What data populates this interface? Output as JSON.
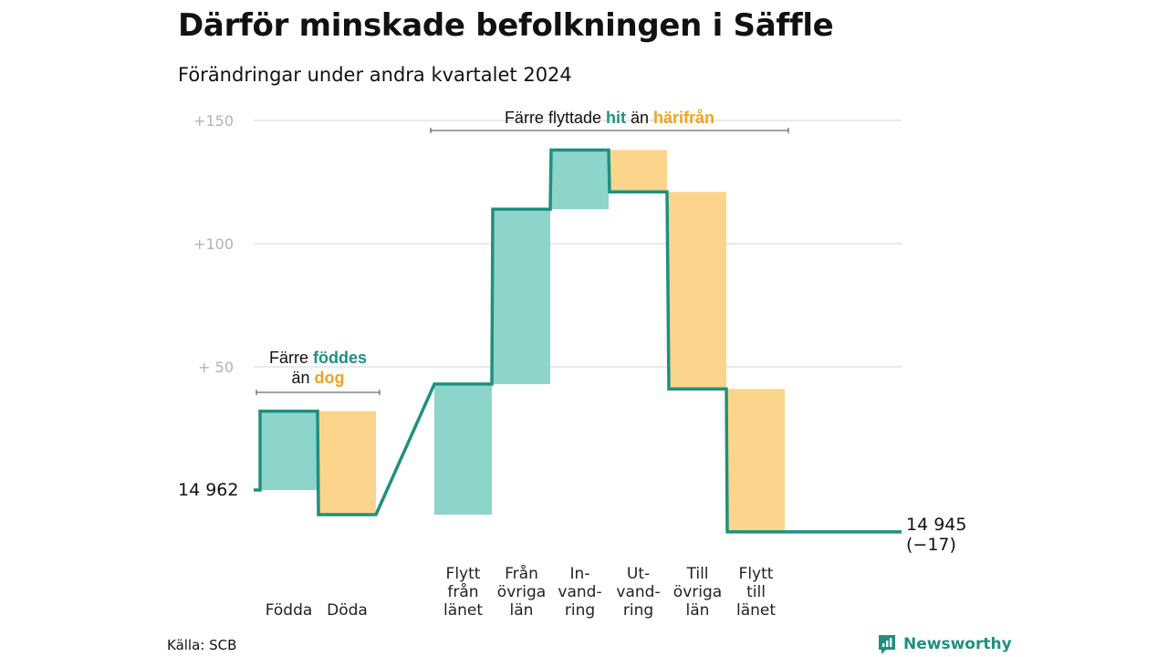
{
  "title": "Därför minskade befolkningen i Säffle",
  "subtitle": "Förändringar under andra kvartalet 2024",
  "source": "Källa: SCB",
  "logo_text": "Newsworthy",
  "colors": {
    "increase": "#8dd4ca",
    "decrease": "#fbd58c",
    "line": "#1f9080",
    "teal_text": "#1f9080",
    "orange_text": "#f0a31e"
  },
  "chart_data": {
    "type": "waterfall",
    "start": {
      "label": "14  962",
      "value": 14962
    },
    "end": {
      "label": "14 945",
      "change_label": "(−17)",
      "value": 14945
    },
    "y_ticks": [
      {
        "label": "+150",
        "value": 150
      },
      {
        "label": "+100",
        "value": 100
      },
      {
        "label": "+  50",
        "value": 50
      }
    ],
    "ylim": [
      -20,
      150
    ],
    "grid": true,
    "steps": [
      {
        "label": [
          "Födda"
        ],
        "delta": 32
      },
      {
        "label": [
          "Döda"
        ],
        "delta": -42
      },
      {
        "label": [
          "Flytt",
          "från",
          "länet"
        ],
        "delta": 53
      },
      {
        "label": [
          "Från",
          "övriga",
          "län"
        ],
        "delta": 71
      },
      {
        "label": [
          "In-",
          "vand-",
          "ring"
        ],
        "delta": 24
      },
      {
        "label": [
          "Ut-",
          "vand-",
          "ring"
        ],
        "delta": -17
      },
      {
        "label": [
          "Till",
          "övriga",
          "län"
        ],
        "delta": -80
      },
      {
        "label": [
          "Flytt",
          "till",
          "länet"
        ],
        "delta": -58
      }
    ],
    "annotations": [
      {
        "parts": [
          [
            "Färre ",
            ""
          ],
          [
            "föddes",
            "teal"
          ]
        ],
        "line2": [
          [
            "än ",
            ""
          ],
          [
            "dog",
            "orange"
          ]
        ],
        "from_step": 0,
        "to_step": 1
      },
      {
        "parts": [
          [
            "Färre flyttade ",
            ""
          ],
          [
            "hit",
            "teal"
          ],
          [
            " än ",
            ""
          ],
          [
            "härifrån",
            "orange"
          ]
        ],
        "from_step": 2,
        "to_step": 7
      }
    ]
  }
}
